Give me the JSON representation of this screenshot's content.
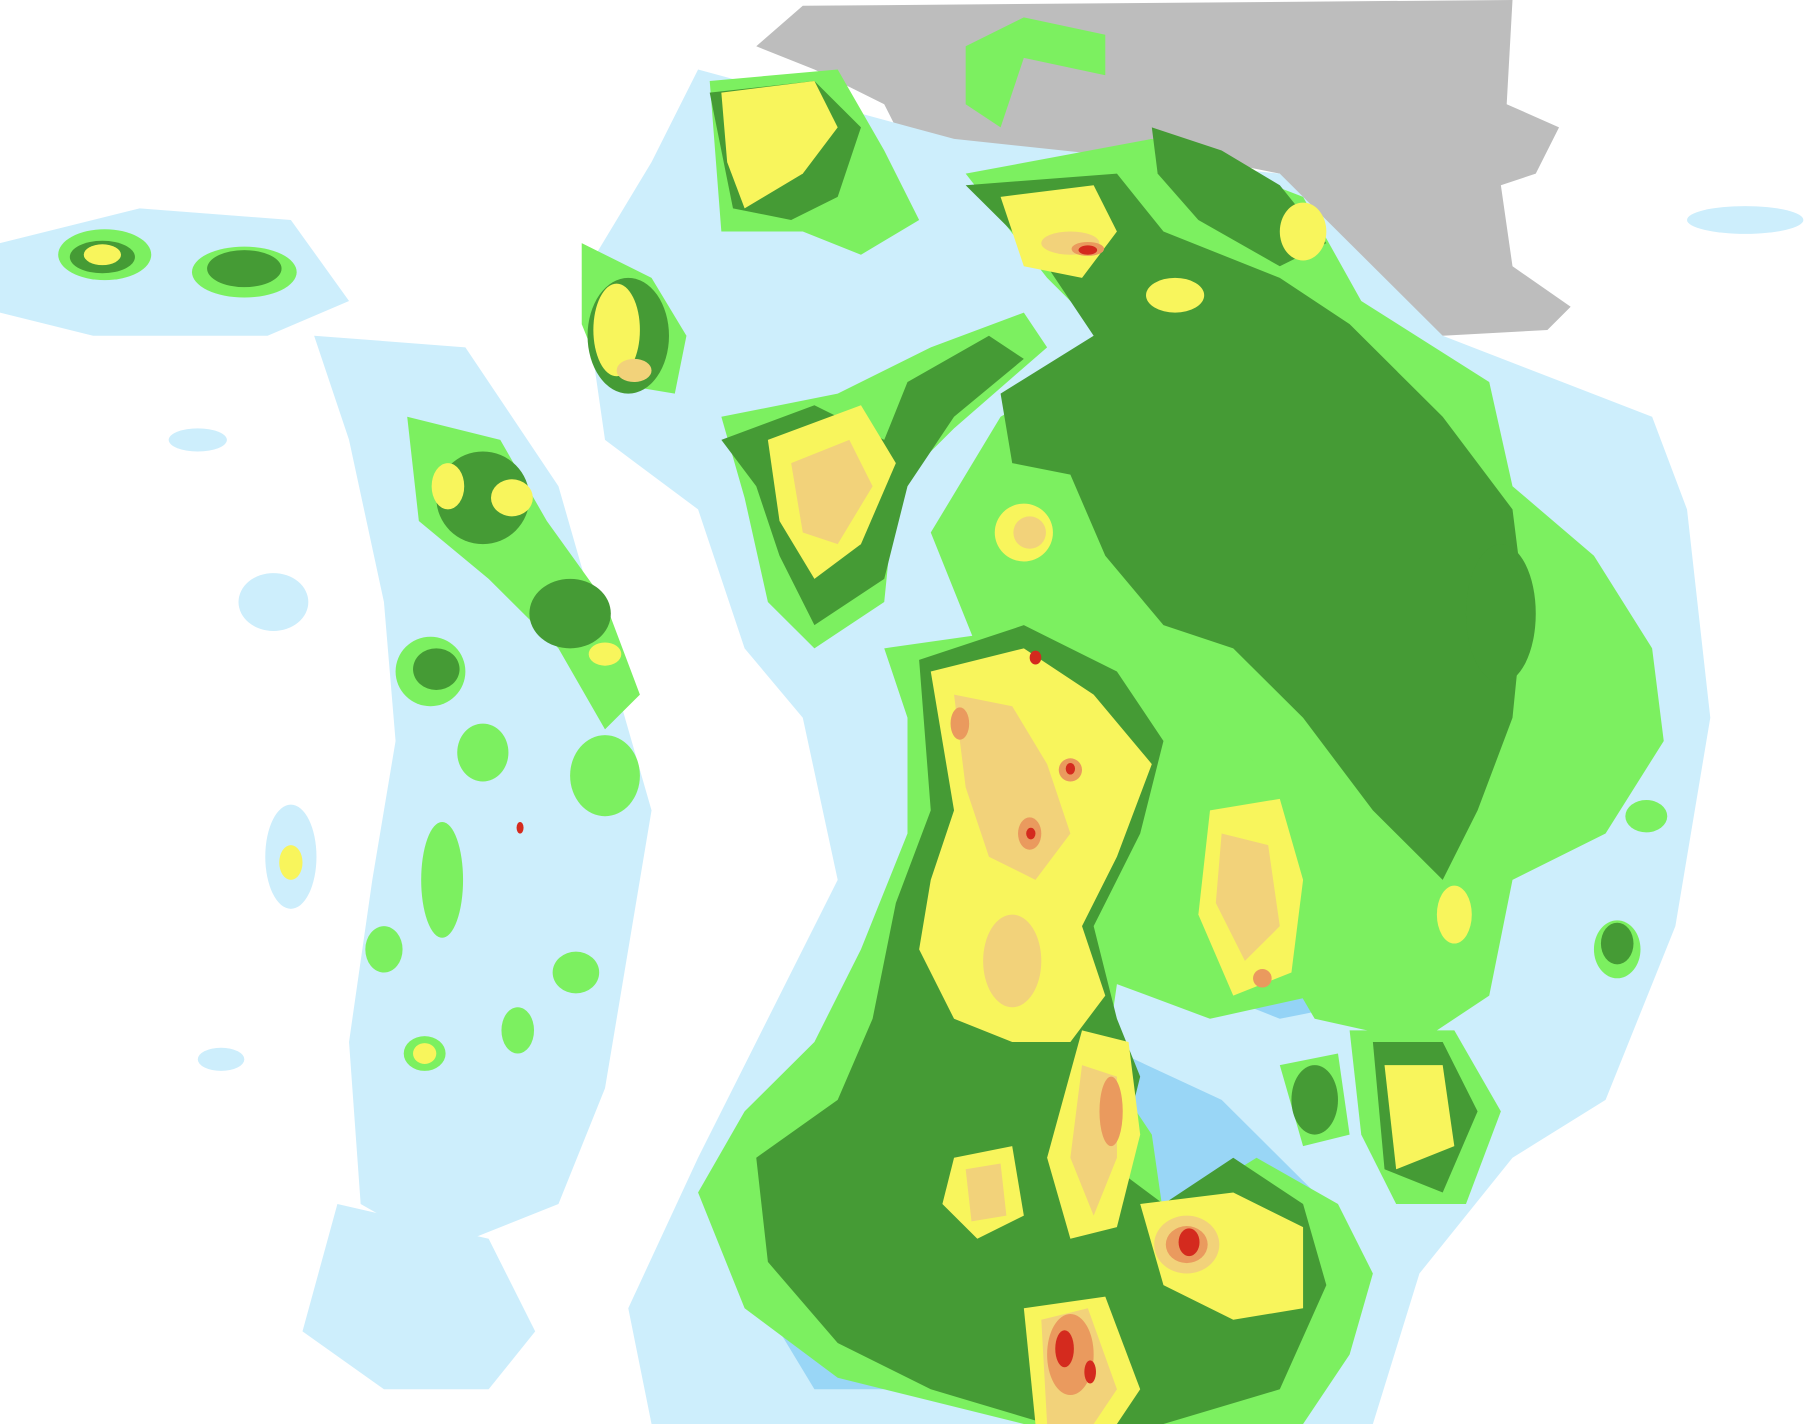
{
  "map": {
    "kind": "precipitation radar composite",
    "background_color": "#ffffff",
    "land_mask_color": "#bdbdbd",
    "intensity_colors": {
      "very_light": "#cdeefc",
      "light": "#66bdf0",
      "light_moderate": "#7cf060",
      "moderate": "#459b35",
      "moderate_heavy": "#f8f55c",
      "heavy": "#f2d27a",
      "very_heavy": "#ea9a5e",
      "extreme": "#d42a1e"
    }
  }
}
